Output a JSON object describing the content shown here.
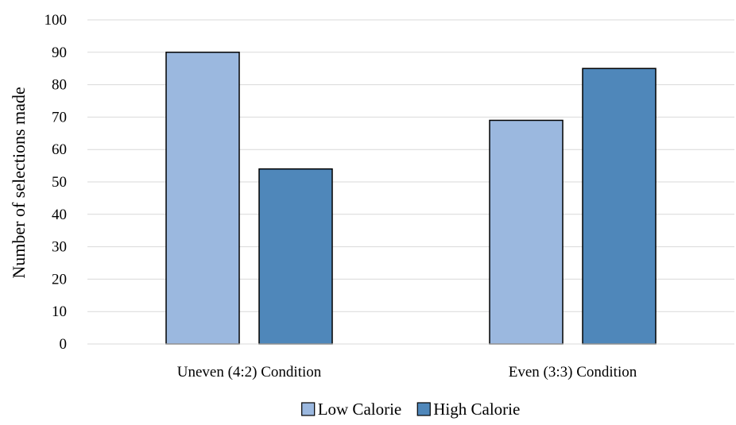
{
  "chart_data": {
    "type": "bar",
    "categories": [
      "Uneven (4:2) Condition",
      "Even (3:3) Condition"
    ],
    "series": [
      {
        "name": "Low Calorie",
        "values": [
          90,
          69
        ],
        "color": "#9BB8DF"
      },
      {
        "name": "High Calorie",
        "values": [
          54,
          85
        ],
        "color": "#4F87BA"
      }
    ],
    "ylabel": "Number of selections made",
    "xlabel": "",
    "ylim": [
      0,
      100
    ],
    "yticks": [
      0,
      10,
      20,
      30,
      40,
      50,
      60,
      70,
      80,
      90,
      100
    ],
    "grid": true,
    "legend_position": "bottom",
    "grid_color": "#D9D9D9",
    "bar_outline_color": "#000000"
  }
}
